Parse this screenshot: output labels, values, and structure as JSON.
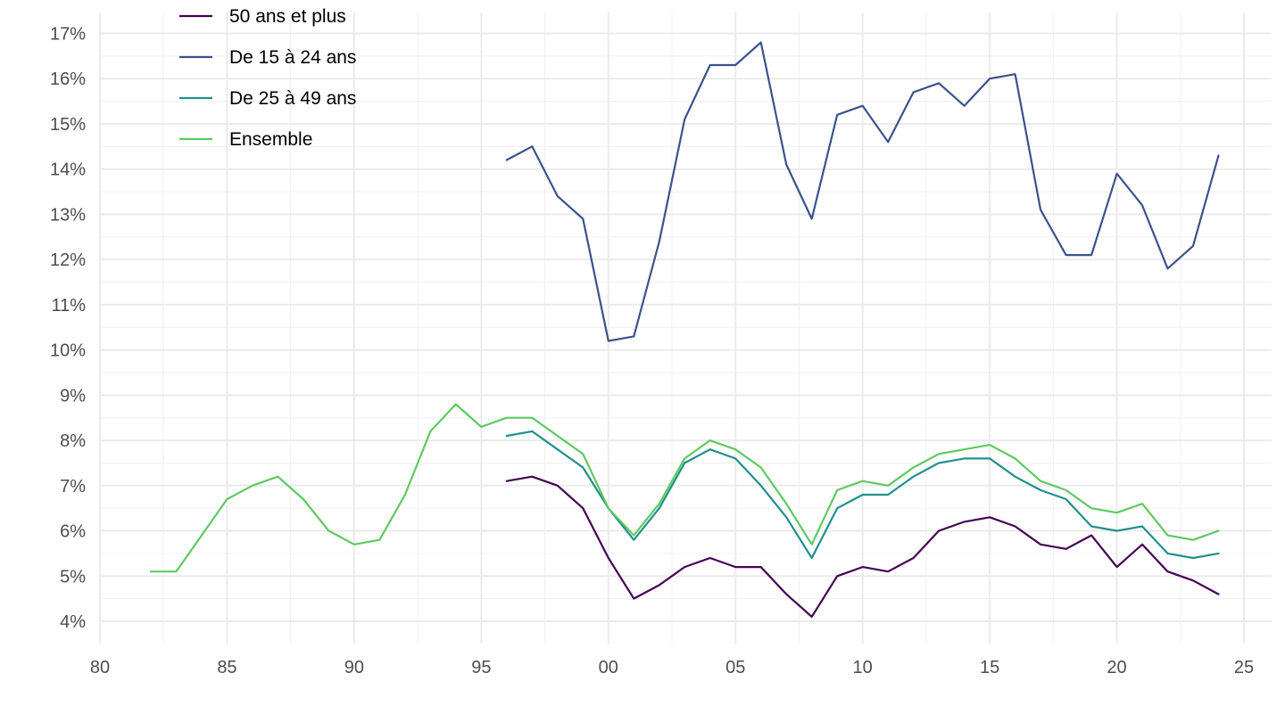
{
  "chart_data": {
    "type": "line",
    "title": "",
    "xlabel": "",
    "ylabel": "",
    "xlim": [
      1980,
      2025
    ],
    "ylim": [
      3.7,
      17.4
    ],
    "x_ticks": [
      {
        "value": 1980,
        "label": "80"
      },
      {
        "value": 1985,
        "label": "85"
      },
      {
        "value": 1990,
        "label": "90"
      },
      {
        "value": 1995,
        "label": "95"
      },
      {
        "value": 2000,
        "label": "00"
      },
      {
        "value": 2005,
        "label": "05"
      },
      {
        "value": 2010,
        "label": "10"
      },
      {
        "value": 2015,
        "label": "15"
      },
      {
        "value": 2020,
        "label": "20"
      },
      {
        "value": 2025,
        "label": "25"
      }
    ],
    "y_ticks": [
      {
        "value": 4,
        "label": "4%"
      },
      {
        "value": 5,
        "label": "5%"
      },
      {
        "value": 6,
        "label": "6%"
      },
      {
        "value": 7,
        "label": "7%"
      },
      {
        "value": 8,
        "label": "8%"
      },
      {
        "value": 9,
        "label": "9%"
      },
      {
        "value": 10,
        "label": "10%"
      },
      {
        "value": 11,
        "label": "11%"
      },
      {
        "value": 12,
        "label": "12%"
      },
      {
        "value": 13,
        "label": "13%"
      },
      {
        "value": 14,
        "label": "14%"
      },
      {
        "value": 15,
        "label": "15%"
      },
      {
        "value": 16,
        "label": "16%"
      },
      {
        "value": 17,
        "label": "17%"
      }
    ],
    "grid": true,
    "legend_position": "top-left",
    "series": [
      {
        "name": "50 ans et plus",
        "color": "#440154",
        "x": [
          1996,
          1997,
          1998,
          1999,
          2000,
          2001,
          2002,
          2003,
          2004,
          2005,
          2006,
          2007,
          2008,
          2009,
          2010,
          2011,
          2012,
          2013,
          2014,
          2015,
          2016,
          2017,
          2018,
          2019,
          2020,
          2021,
          2022,
          2023,
          2024
        ],
        "y": [
          7.1,
          7.2,
          7.0,
          6.5,
          5.4,
          4.5,
          4.8,
          5.2,
          5.4,
          5.2,
          5.2,
          4.6,
          4.1,
          5.0,
          5.2,
          5.1,
          5.4,
          6.0,
          6.2,
          6.3,
          6.1,
          5.7,
          5.6,
          5.9,
          5.2,
          5.7,
          5.1,
          4.9,
          4.6
        ]
      },
      {
        "name": "De 15 à 24 ans",
        "color": "#3b528b",
        "x": [
          1996,
          1997,
          1998,
          1999,
          2000,
          2001,
          2002,
          2003,
          2004,
          2005,
          2006,
          2007,
          2008,
          2009,
          2010,
          2011,
          2012,
          2013,
          2014,
          2015,
          2016,
          2017,
          2018,
          2019,
          2020,
          2021,
          2022,
          2023,
          2024
        ],
        "y": [
          14.2,
          14.5,
          13.4,
          12.9,
          10.2,
          10.3,
          12.4,
          15.1,
          16.3,
          16.3,
          16.8,
          14.1,
          12.9,
          15.2,
          15.4,
          14.6,
          15.7,
          15.9,
          15.4,
          16.0,
          16.1,
          13.1,
          12.1,
          12.1,
          13.9,
          13.2,
          11.8,
          12.3,
          14.3
        ]
      },
      {
        "name": "De 25 à 49 ans",
        "color": "#21908c",
        "x": [
          1996,
          1997,
          1998,
          1999,
          2000,
          2001,
          2002,
          2003,
          2004,
          2005,
          2006,
          2007,
          2008,
          2009,
          2010,
          2011,
          2012,
          2013,
          2014,
          2015,
          2016,
          2017,
          2018,
          2019,
          2020,
          2021,
          2022,
          2023,
          2024
        ],
        "y": [
          8.1,
          8.2,
          7.8,
          7.4,
          6.5,
          5.8,
          6.5,
          7.5,
          7.8,
          7.6,
          7.0,
          6.3,
          5.4,
          6.5,
          6.8,
          6.8,
          7.2,
          7.5,
          7.6,
          7.6,
          7.2,
          6.9,
          6.7,
          6.1,
          6.0,
          6.1,
          5.5,
          5.4,
          5.5
        ]
      },
      {
        "name": "Ensemble",
        "color": "#5ec962",
        "x": [
          1982,
          1983,
          1984,
          1985,
          1986,
          1987,
          1988,
          1989,
          1990,
          1991,
          1992,
          1993,
          1994,
          1995,
          1996,
          1997,
          1998,
          1999,
          2000,
          2001,
          2002,
          2003,
          2004,
          2005,
          2006,
          2007,
          2008,
          2009,
          2010,
          2011,
          2012,
          2013,
          2014,
          2015,
          2016,
          2017,
          2018,
          2019,
          2020,
          2021,
          2022,
          2023,
          2024
        ],
        "y": [
          5.1,
          5.1,
          5.9,
          6.7,
          7.0,
          7.2,
          6.7,
          6.0,
          5.7,
          5.8,
          6.8,
          8.2,
          8.8,
          8.3,
          8.5,
          8.5,
          8.1,
          7.7,
          6.5,
          5.9,
          6.6,
          7.6,
          8.0,
          7.8,
          7.4,
          6.6,
          5.7,
          6.9,
          7.1,
          7.0,
          7.4,
          7.7,
          7.8,
          7.9,
          7.6,
          7.1,
          6.9,
          6.5,
          6.4,
          6.6,
          5.9,
          5.8,
          6.0
        ]
      }
    ]
  }
}
